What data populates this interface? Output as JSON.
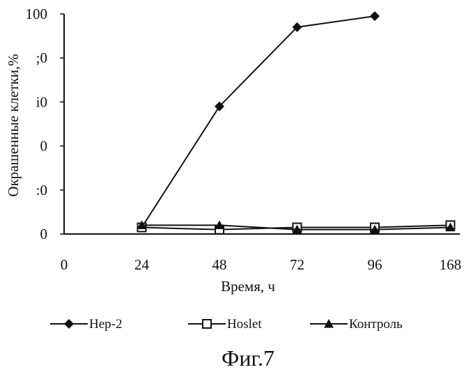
{
  "chart_data": {
    "type": "line",
    "title": "",
    "xlabel": "Время, ч",
    "ylabel": "Окрашенные клетки,%",
    "categories": [
      "0",
      "24",
      "48",
      "72",
      "96",
      "168"
    ],
    "ylim": [
      0,
      100
    ],
    "yticks": [
      "0",
      "20",
      "40",
      "60",
      "80",
      "100"
    ],
    "ytick_labels_shown": [
      "0",
      ":0",
      "0",
      "i0",
      ";0",
      "100"
    ],
    "series": [
      {
        "name": "Hep-2",
        "marker": "diamond-filled",
        "values": [
          null,
          3,
          58,
          94,
          99,
          null
        ]
      },
      {
        "name": "Hoslet",
        "marker": "square-open",
        "values": [
          null,
          3,
          2,
          3,
          3,
          4
        ]
      },
      {
        "name": "Контроль",
        "marker": "triangle-filled",
        "values": [
          null,
          4,
          4,
          2,
          2,
          3
        ]
      }
    ],
    "grid": false,
    "legend_position": "bottom"
  },
  "caption": "Фиг.7",
  "colors": {
    "line": "#111111",
    "background": "#ffffff"
  }
}
